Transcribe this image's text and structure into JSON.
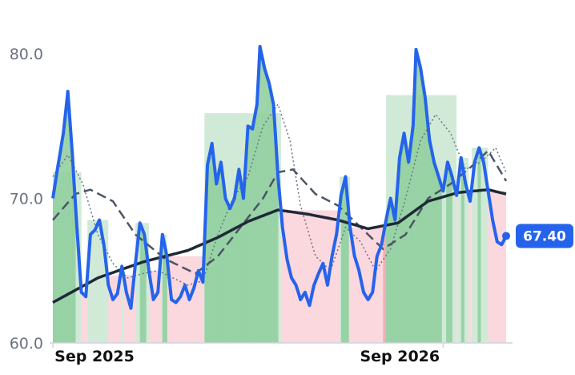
{
  "chart_data": {
    "type": "line",
    "title": "",
    "xlabel": "",
    "ylabel": "",
    "ylim": [
      60,
      81.5
    ],
    "y_ticks": [
      {
        "value": 80,
        "label": "80.0"
      },
      {
        "value": 70,
        "label": "70.0"
      },
      {
        "value": 60,
        "label": "60.0"
      }
    ],
    "x_ticks": [
      {
        "index": 0,
        "label": "Sep 2025"
      },
      {
        "index": 260,
        "label": "Sep 2026"
      }
    ],
    "grid": false,
    "legend": "none",
    "last_value_label": "67.40",
    "colors": {
      "price": "#2563eb",
      "sma_long": "#1f2937",
      "sma_mid": "#4b5563",
      "sma_short": "#6b7280",
      "up_strong": "#8fcf9f",
      "up_light": "#cfe9d6",
      "down_strong": "#f6a6b2",
      "down_light": "#fbd5dc",
      "axis": "#d1d5db",
      "badge": "#2563eb"
    },
    "price_anchors": [
      {
        "i": 0,
        "v": 70.0
      },
      {
        "i": 3,
        "v": 72.0
      },
      {
        "i": 7,
        "v": 74.5
      },
      {
        "i": 10,
        "v": 77.4
      },
      {
        "i": 13,
        "v": 73.0
      },
      {
        "i": 16,
        "v": 68.0
      },
      {
        "i": 19,
        "v": 63.5
      },
      {
        "i": 22,
        "v": 63.2
      },
      {
        "i": 25,
        "v": 67.5
      },
      {
        "i": 28,
        "v": 67.8
      },
      {
        "i": 31,
        "v": 68.5
      },
      {
        "i": 34,
        "v": 66.8
      },
      {
        "i": 37,
        "v": 64.0
      },
      {
        "i": 40,
        "v": 63.0
      },
      {
        "i": 43,
        "v": 63.4
      },
      {
        "i": 46,
        "v": 65.3
      },
      {
        "i": 49,
        "v": 63.5
      },
      {
        "i": 52,
        "v": 62.4
      },
      {
        "i": 55,
        "v": 65.5
      },
      {
        "i": 58,
        "v": 68.3
      },
      {
        "i": 61,
        "v": 67.5
      },
      {
        "i": 64,
        "v": 65.0
      },
      {
        "i": 67,
        "v": 63.0
      },
      {
        "i": 70,
        "v": 63.5
      },
      {
        "i": 73,
        "v": 67.5
      },
      {
        "i": 76,
        "v": 66.0
      },
      {
        "i": 79,
        "v": 63.0
      },
      {
        "i": 82,
        "v": 62.8
      },
      {
        "i": 85,
        "v": 63.2
      },
      {
        "i": 88,
        "v": 64.0
      },
      {
        "i": 91,
        "v": 63.0
      },
      {
        "i": 94,
        "v": 63.8
      },
      {
        "i": 97,
        "v": 65.0
      },
      {
        "i": 100,
        "v": 64.2
      },
      {
        "i": 103,
        "v": 72.3
      },
      {
        "i": 106,
        "v": 73.8
      },
      {
        "i": 109,
        "v": 71.0
      },
      {
        "i": 112,
        "v": 72.5
      },
      {
        "i": 115,
        "v": 70.0
      },
      {
        "i": 118,
        "v": 69.3
      },
      {
        "i": 121,
        "v": 70.0
      },
      {
        "i": 124,
        "v": 72.0
      },
      {
        "i": 127,
        "v": 70.0
      },
      {
        "i": 130,
        "v": 75.0
      },
      {
        "i": 133,
        "v": 74.8
      },
      {
        "i": 136,
        "v": 76.5
      },
      {
        "i": 138,
        "v": 80.5
      },
      {
        "i": 141,
        "v": 79.0
      },
      {
        "i": 144,
        "v": 78.0
      },
      {
        "i": 147,
        "v": 76.5
      },
      {
        "i": 150,
        "v": 71.5
      },
      {
        "i": 153,
        "v": 68.0
      },
      {
        "i": 156,
        "v": 65.8
      },
      {
        "i": 159,
        "v": 64.5
      },
      {
        "i": 162,
        "v": 64.0
      },
      {
        "i": 165,
        "v": 63.0
      },
      {
        "i": 168,
        "v": 63.5
      },
      {
        "i": 171,
        "v": 62.6
      },
      {
        "i": 174,
        "v": 64.0
      },
      {
        "i": 177,
        "v": 64.8
      },
      {
        "i": 180,
        "v": 65.5
      },
      {
        "i": 183,
        "v": 64.0
      },
      {
        "i": 186,
        "v": 66.0
      },
      {
        "i": 189,
        "v": 67.5
      },
      {
        "i": 192,
        "v": 70.2
      },
      {
        "i": 195,
        "v": 71.5
      },
      {
        "i": 198,
        "v": 68.0
      },
      {
        "i": 201,
        "v": 66.0
      },
      {
        "i": 204,
        "v": 65.0
      },
      {
        "i": 207,
        "v": 63.5
      },
      {
        "i": 210,
        "v": 63.0
      },
      {
        "i": 213,
        "v": 63.5
      },
      {
        "i": 216,
        "v": 66.0
      },
      {
        "i": 219,
        "v": 66.8
      },
      {
        "i": 222,
        "v": 68.5
      },
      {
        "i": 225,
        "v": 70.0
      },
      {
        "i": 228,
        "v": 68.5
      },
      {
        "i": 231,
        "v": 72.8
      },
      {
        "i": 234,
        "v": 74.5
      },
      {
        "i": 237,
        "v": 72.5
      },
      {
        "i": 240,
        "v": 75.0
      },
      {
        "i": 242,
        "v": 80.3
      },
      {
        "i": 245,
        "v": 79.0
      },
      {
        "i": 248,
        "v": 77.0
      },
      {
        "i": 251,
        "v": 74.0
      },
      {
        "i": 254,
        "v": 72.5
      },
      {
        "i": 257,
        "v": 71.5
      },
      {
        "i": 260,
        "v": 70.5
      },
      {
        "i": 263,
        "v": 72.5
      },
      {
        "i": 266,
        "v": 71.5
      },
      {
        "i": 269,
        "v": 70.2
      },
      {
        "i": 272,
        "v": 72.8
      },
      {
        "i": 275,
        "v": 71.0
      },
      {
        "i": 278,
        "v": 69.8
      },
      {
        "i": 281,
        "v": 72.5
      },
      {
        "i": 284,
        "v": 73.5
      },
      {
        "i": 287,
        "v": 72.5
      },
      {
        "i": 290,
        "v": 70.5
      },
      {
        "i": 293,
        "v": 68.5
      },
      {
        "i": 296,
        "v": 67.0
      },
      {
        "i": 299,
        "v": 66.8
      },
      {
        "i": 302,
        "v": 67.4
      }
    ],
    "sma_long_anchors": [
      {
        "i": 0,
        "v": 62.8
      },
      {
        "i": 30,
        "v": 64.5
      },
      {
        "i": 60,
        "v": 65.6
      },
      {
        "i": 90,
        "v": 66.4
      },
      {
        "i": 110,
        "v": 67.3
      },
      {
        "i": 130,
        "v": 68.4
      },
      {
        "i": 150,
        "v": 69.2
      },
      {
        "i": 170,
        "v": 68.9
      },
      {
        "i": 190,
        "v": 68.5
      },
      {
        "i": 210,
        "v": 67.9
      },
      {
        "i": 230,
        "v": 68.3
      },
      {
        "i": 250,
        "v": 69.8
      },
      {
        "i": 270,
        "v": 70.4
      },
      {
        "i": 290,
        "v": 70.6
      },
      {
        "i": 302,
        "v": 70.3
      }
    ],
    "sma_mid_anchors": [
      {
        "i": 0,
        "v": 68.5
      },
      {
        "i": 15,
        "v": 70.3
      },
      {
        "i": 25,
        "v": 70.6
      },
      {
        "i": 40,
        "v": 69.8
      },
      {
        "i": 55,
        "v": 67.5
      },
      {
        "i": 75,
        "v": 65.8
      },
      {
        "i": 95,
        "v": 64.8
      },
      {
        "i": 110,
        "v": 66.0
      },
      {
        "i": 125,
        "v": 68.0
      },
      {
        "i": 140,
        "v": 70.0
      },
      {
        "i": 150,
        "v": 71.8
      },
      {
        "i": 160,
        "v": 72.0
      },
      {
        "i": 175,
        "v": 70.3
      },
      {
        "i": 190,
        "v": 69.5
      },
      {
        "i": 205,
        "v": 68.0
      },
      {
        "i": 220,
        "v": 66.5
      },
      {
        "i": 235,
        "v": 67.5
      },
      {
        "i": 250,
        "v": 70.0
      },
      {
        "i": 265,
        "v": 71.0
      },
      {
        "i": 280,
        "v": 72.3
      },
      {
        "i": 290,
        "v": 73.3
      },
      {
        "i": 302,
        "v": 71.2
      }
    ],
    "sma_short_anchors": [
      {
        "i": 0,
        "v": 71.5
      },
      {
        "i": 10,
        "v": 73.0
      },
      {
        "i": 20,
        "v": 71.0
      },
      {
        "i": 30,
        "v": 67.5
      },
      {
        "i": 40,
        "v": 65.5
      },
      {
        "i": 50,
        "v": 64.5
      },
      {
        "i": 60,
        "v": 64.8
      },
      {
        "i": 70,
        "v": 65.0
      },
      {
        "i": 80,
        "v": 64.5
      },
      {
        "i": 90,
        "v": 64.0
      },
      {
        "i": 100,
        "v": 64.3
      },
      {
        "i": 110,
        "v": 67.5
      },
      {
        "i": 120,
        "v": 70.0
      },
      {
        "i": 130,
        "v": 71.5
      },
      {
        "i": 140,
        "v": 75.0
      },
      {
        "i": 150,
        "v": 76.5
      },
      {
        "i": 158,
        "v": 74.0
      },
      {
        "i": 165,
        "v": 69.5
      },
      {
        "i": 175,
        "v": 66.0
      },
      {
        "i": 185,
        "v": 65.0
      },
      {
        "i": 195,
        "v": 68.0
      },
      {
        "i": 205,
        "v": 67.0
      },
      {
        "i": 215,
        "v": 65.0
      },
      {
        "i": 225,
        "v": 66.5
      },
      {
        "i": 235,
        "v": 70.0
      },
      {
        "i": 245,
        "v": 74.0
      },
      {
        "i": 255,
        "v": 75.8
      },
      {
        "i": 265,
        "v": 74.5
      },
      {
        "i": 275,
        "v": 72.0
      },
      {
        "i": 285,
        "v": 72.5
      },
      {
        "i": 295,
        "v": 73.5
      },
      {
        "i": 302,
        "v": 71.8
      }
    ]
  }
}
